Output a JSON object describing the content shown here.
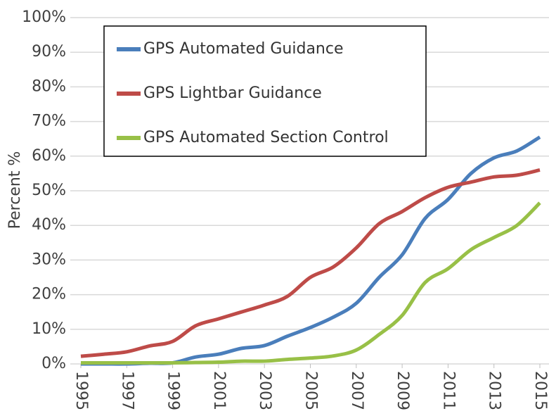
{
  "chart_data": {
    "type": "line",
    "y_label": "Percent %",
    "x": [
      1995,
      1996,
      1997,
      1998,
      1999,
      2000,
      2001,
      2002,
      2003,
      2004,
      2005,
      2006,
      2007,
      2008,
      2009,
      2010,
      2011,
      2012,
      2013,
      2014,
      2015
    ],
    "xlim": [
      1995,
      2015
    ],
    "xticks": [
      1995,
      1997,
      1999,
      2001,
      2003,
      2005,
      2007,
      2009,
      2011,
      2013,
      2015
    ],
    "ylim": [
      0,
      100
    ],
    "yticks": [
      {
        "value": 0,
        "label": "0%"
      },
      {
        "value": 10,
        "label": "10%"
      },
      {
        "value": 20,
        "label": "20%"
      },
      {
        "value": 30,
        "label": "30%"
      },
      {
        "value": 40,
        "label": "40%"
      },
      {
        "value": 50,
        "label": "50%"
      },
      {
        "value": 60,
        "label": "60%"
      },
      {
        "value": 70,
        "label": "70%"
      },
      {
        "value": 80,
        "label": "80%"
      },
      {
        "value": 90,
        "label": "90%"
      },
      {
        "value": 100,
        "label": "100%"
      }
    ],
    "grid": true,
    "legend": "top-left",
    "series": [
      {
        "name": "GPS Automated Guidance",
        "color": "#4a7ebb",
        "values": [
          0,
          0,
          0,
          0.2,
          0.3,
          2,
          2.8,
          4.5,
          5.3,
          8,
          10.5,
          13.5,
          17.5,
          25,
          31.5,
          42,
          47.5,
          55,
          59.5,
          61.5,
          65.5
        ]
      },
      {
        "name": "GPS Lightbar Guidance",
        "color": "#be4b48",
        "values": [
          2.2,
          2.8,
          3.5,
          5.2,
          6.5,
          11,
          13,
          15,
          17,
          19.5,
          25,
          28,
          33.5,
          40.5,
          44,
          48,
          51,
          52.5,
          54,
          54.5,
          56
        ]
      },
      {
        "name": "GPS Automated Section Control",
        "color": "#98c047",
        "values": [
          0.3,
          0.3,
          0.3,
          0.3,
          0.3,
          0.4,
          0.5,
          0.8,
          0.8,
          1.3,
          1.7,
          2.3,
          4,
          8.5,
          14,
          23.5,
          27.5,
          33,
          36.5,
          40,
          46.5
        ]
      }
    ]
  }
}
